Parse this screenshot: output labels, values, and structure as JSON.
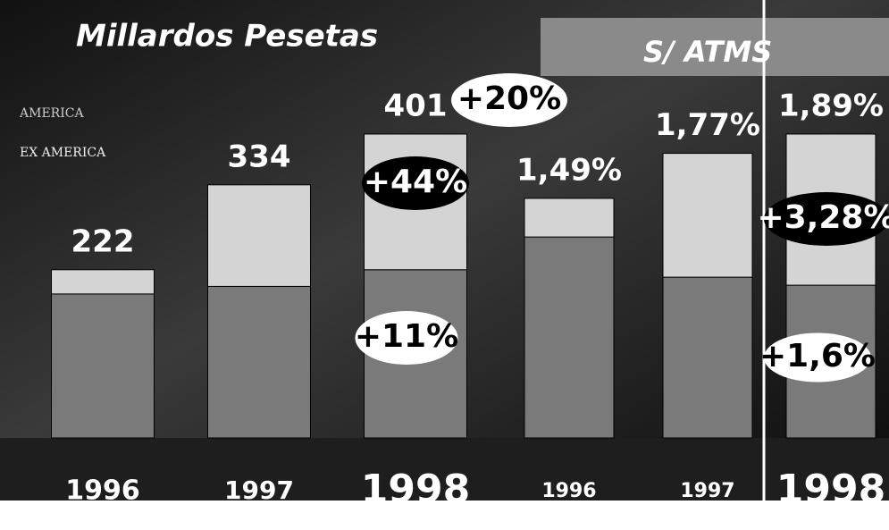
{
  "chart_data": [
    {
      "type": "stacked-bar",
      "title": "Millardos Pesetas",
      "categories": [
        "1996",
        "1997",
        "1998"
      ],
      "series": [
        {
          "name": "AMERICA",
          "color": "#7a7a7a",
          "values": [
            190,
            200,
            222
          ]
        },
        {
          "name": "EX AMERICA",
          "color": "#d4d4d4",
          "values": [
            32,
            134,
            179
          ]
        }
      ],
      "totals": [
        222,
        334,
        401
      ],
      "annotations": [
        "+20%",
        "+44%",
        "+11%"
      ]
    },
    {
      "type": "stacked-bar",
      "title": "S/ ATMS",
      "categories": [
        "1996",
        "1997",
        "1998"
      ],
      "series": [
        {
          "color": "#7a7a7a",
          "values": [
            1.25,
            1.0,
            0.95
          ]
        },
        {
          "color": "#d4d4d4",
          "values": [
            0.24,
            0.77,
            0.94
          ]
        }
      ],
      "totals": [
        1.49,
        1.77,
        1.89
      ],
      "total_labels": [
        "1,49%",
        "1,77%",
        "1,89%"
      ],
      "annotations": [
        "+3,28%",
        "+1,6%"
      ]
    }
  ]
}
